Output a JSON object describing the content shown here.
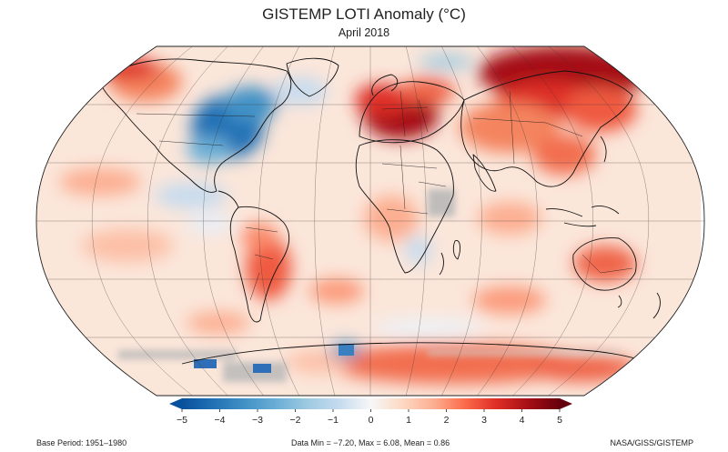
{
  "header": {
    "title": "GISTEMP LOTI Anomaly (°C)",
    "subtitle": "April 2018"
  },
  "colorbar": {
    "min": -5,
    "max": 5,
    "ticks": [
      "−5",
      "−4",
      "−3",
      "−2",
      "−1",
      "0",
      "1",
      "2",
      "3",
      "4",
      "5"
    ],
    "colors": [
      "#08519c",
      "#2171b5",
      "#4292c6",
      "#6baed6",
      "#9ecae1",
      "#c6dbef",
      "#f7f7f7",
      "#fcd9c4",
      "#fcae91",
      "#fb6a4a",
      "#de2d26",
      "#a50f15",
      "#67000d"
    ]
  },
  "footer": {
    "base_period": "Base Period: 1951–1980",
    "stats": "Data Min = −7.20, Max = 6.08, Mean = 0.86",
    "credit": "NASA/GISS/GISTEMP"
  },
  "map": {
    "projection": "robinson",
    "missing_data_color": "#b8b8b8"
  }
}
